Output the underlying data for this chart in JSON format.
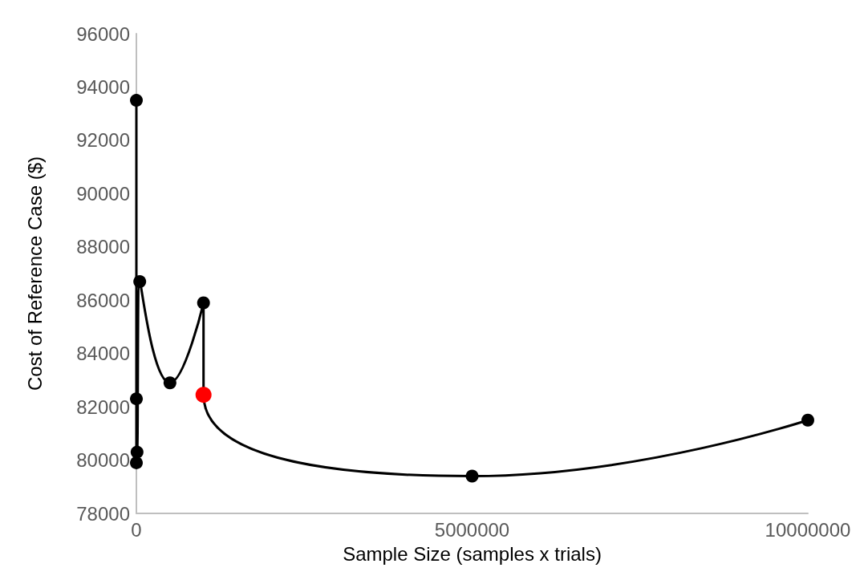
{
  "chart_data": {
    "type": "line",
    "xlabel": "Sample Size (samples x trials)",
    "ylabel": "Cost of Reference Case ($)",
    "x": [
      10,
      50,
      100,
      10000,
      50000,
      500000,
      1000000,
      1000000,
      5000000,
      10000000
    ],
    "series": [
      {
        "color": "#000000",
        "values": [
          93500,
          79900,
          82300,
          80300,
          86700,
          82900,
          85900,
          82450,
          79400,
          81500
        ],
        "colors": [
          "#000000",
          "#000000",
          "#000000",
          "#000000",
          "#000000",
          "#000000",
          "#000000",
          "#ff0000",
          "#000000",
          "#000000"
        ]
      }
    ],
    "xlim": [
      0,
      10000000
    ],
    "xticks": [
      0,
      5000000,
      10000000
    ],
    "ylim": [
      78000,
      96000
    ],
    "yticks": [
      78000,
      80000,
      82000,
      84000,
      86000,
      88000,
      90000,
      92000,
      94000,
      96000
    ],
    "grid": false,
    "marker": "circle",
    "line_style": "solid"
  }
}
